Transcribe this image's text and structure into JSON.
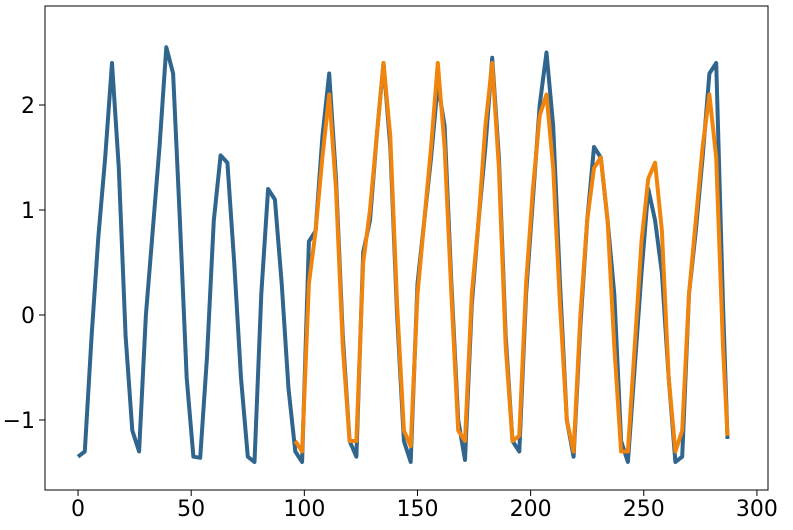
{
  "chart_data": {
    "type": "line",
    "x": [
      0,
      3,
      6,
      9,
      12,
      15,
      18,
      21,
      24,
      27,
      30,
      33,
      36,
      39,
      42,
      45,
      48,
      51,
      54,
      57,
      60,
      63,
      66,
      69,
      72,
      75,
      78,
      81,
      84,
      87,
      90,
      93,
      96,
      99,
      102,
      105,
      108,
      111,
      114,
      117,
      120,
      123,
      126,
      129,
      132,
      135,
      138,
      141,
      144,
      147,
      150,
      153,
      156,
      159,
      162,
      165,
      168,
      171,
      174,
      177,
      180,
      183,
      186,
      189,
      192,
      195,
      198,
      201,
      204,
      207,
      210,
      213,
      216,
      219,
      222,
      225,
      228,
      231,
      234,
      237,
      240,
      243,
      246,
      249,
      252,
      255,
      258,
      261,
      264,
      267,
      270,
      273,
      276,
      279,
      282,
      285,
      287
    ],
    "series": [
      {
        "color": "#30658e",
        "values": [
          -1.35,
          -1.3,
          -0.2,
          0.75,
          1.5,
          2.4,
          1.4,
          -0.2,
          -1.1,
          -1.3,
          0.0,
          0.8,
          1.6,
          2.55,
          2.3,
          0.9,
          -0.6,
          -1.35,
          -1.36,
          -0.4,
          0.9,
          1.52,
          1.45,
          0.5,
          -0.6,
          -1.35,
          -1.4,
          0.2,
          1.2,
          1.1,
          0.3,
          -0.7,
          -1.3,
          -1.4,
          0.7,
          0.8,
          1.7,
          2.3,
          1.3,
          -0.2,
          -1.2,
          -1.35,
          0.6,
          0.9,
          1.7,
          2.4,
          1.6,
          0.0,
          -1.2,
          -1.4,
          0.3,
          0.9,
          1.5,
          2.2,
          1.8,
          0.3,
          -1.0,
          -1.38,
          0.1,
          0.9,
          1.6,
          2.45,
          1.5,
          -0.2,
          -1.2,
          -1.3,
          0.2,
          1.1,
          2.0,
          2.5,
          1.8,
          0.3,
          -1.0,
          -1.35,
          -0.1,
          0.9,
          1.6,
          1.5,
          0.9,
          0.2,
          -1.2,
          -1.4,
          -0.5,
          0.4,
          1.2,
          0.9,
          0.4,
          -0.6,
          -1.4,
          -1.35,
          0.2,
          0.8,
          1.5,
          2.3,
          2.4,
          0.1,
          -1.18
        ]
      },
      {
        "color": "#f0840c",
        "values": [
          null,
          null,
          null,
          null,
          null,
          null,
          null,
          null,
          null,
          null,
          null,
          null,
          null,
          null,
          null,
          null,
          null,
          null,
          null,
          null,
          null,
          null,
          null,
          null,
          null,
          null,
          null,
          null,
          null,
          null,
          null,
          null,
          -1.2,
          -1.3,
          0.3,
          0.8,
          1.5,
          2.1,
          1.2,
          -0.3,
          -1.2,
          -1.2,
          0.5,
          1.0,
          1.7,
          2.4,
          1.7,
          0.1,
          -1.1,
          -1.25,
          0.2,
          0.9,
          1.6,
          2.4,
          1.6,
          0.2,
          -1.1,
          -1.2,
          0.2,
          0.9,
          1.8,
          2.4,
          1.4,
          -0.3,
          -1.2,
          -1.15,
          0.3,
          1.2,
          1.9,
          2.1,
          1.4,
          0.1,
          -1.0,
          -1.3,
          0.0,
          0.9,
          1.4,
          1.5,
          0.9,
          -0.3,
          -1.3,
          -1.3,
          -0.3,
          0.7,
          1.3,
          1.45,
          0.8,
          -0.6,
          -1.3,
          -1.1,
          0.2,
          0.9,
          1.6,
          2.1,
          1.5,
          -0.3,
          -1.15
        ]
      }
    ],
    "xlim": [
      -14.6,
      304.9
    ],
    "ylim": [
      -1.667,
      2.943
    ],
    "xticks": [
      0,
      50,
      100,
      150,
      200,
      250,
      300
    ],
    "yticks": [
      {
        "value": -1,
        "label": "−1"
      },
      0,
      1,
      2
    ]
  }
}
